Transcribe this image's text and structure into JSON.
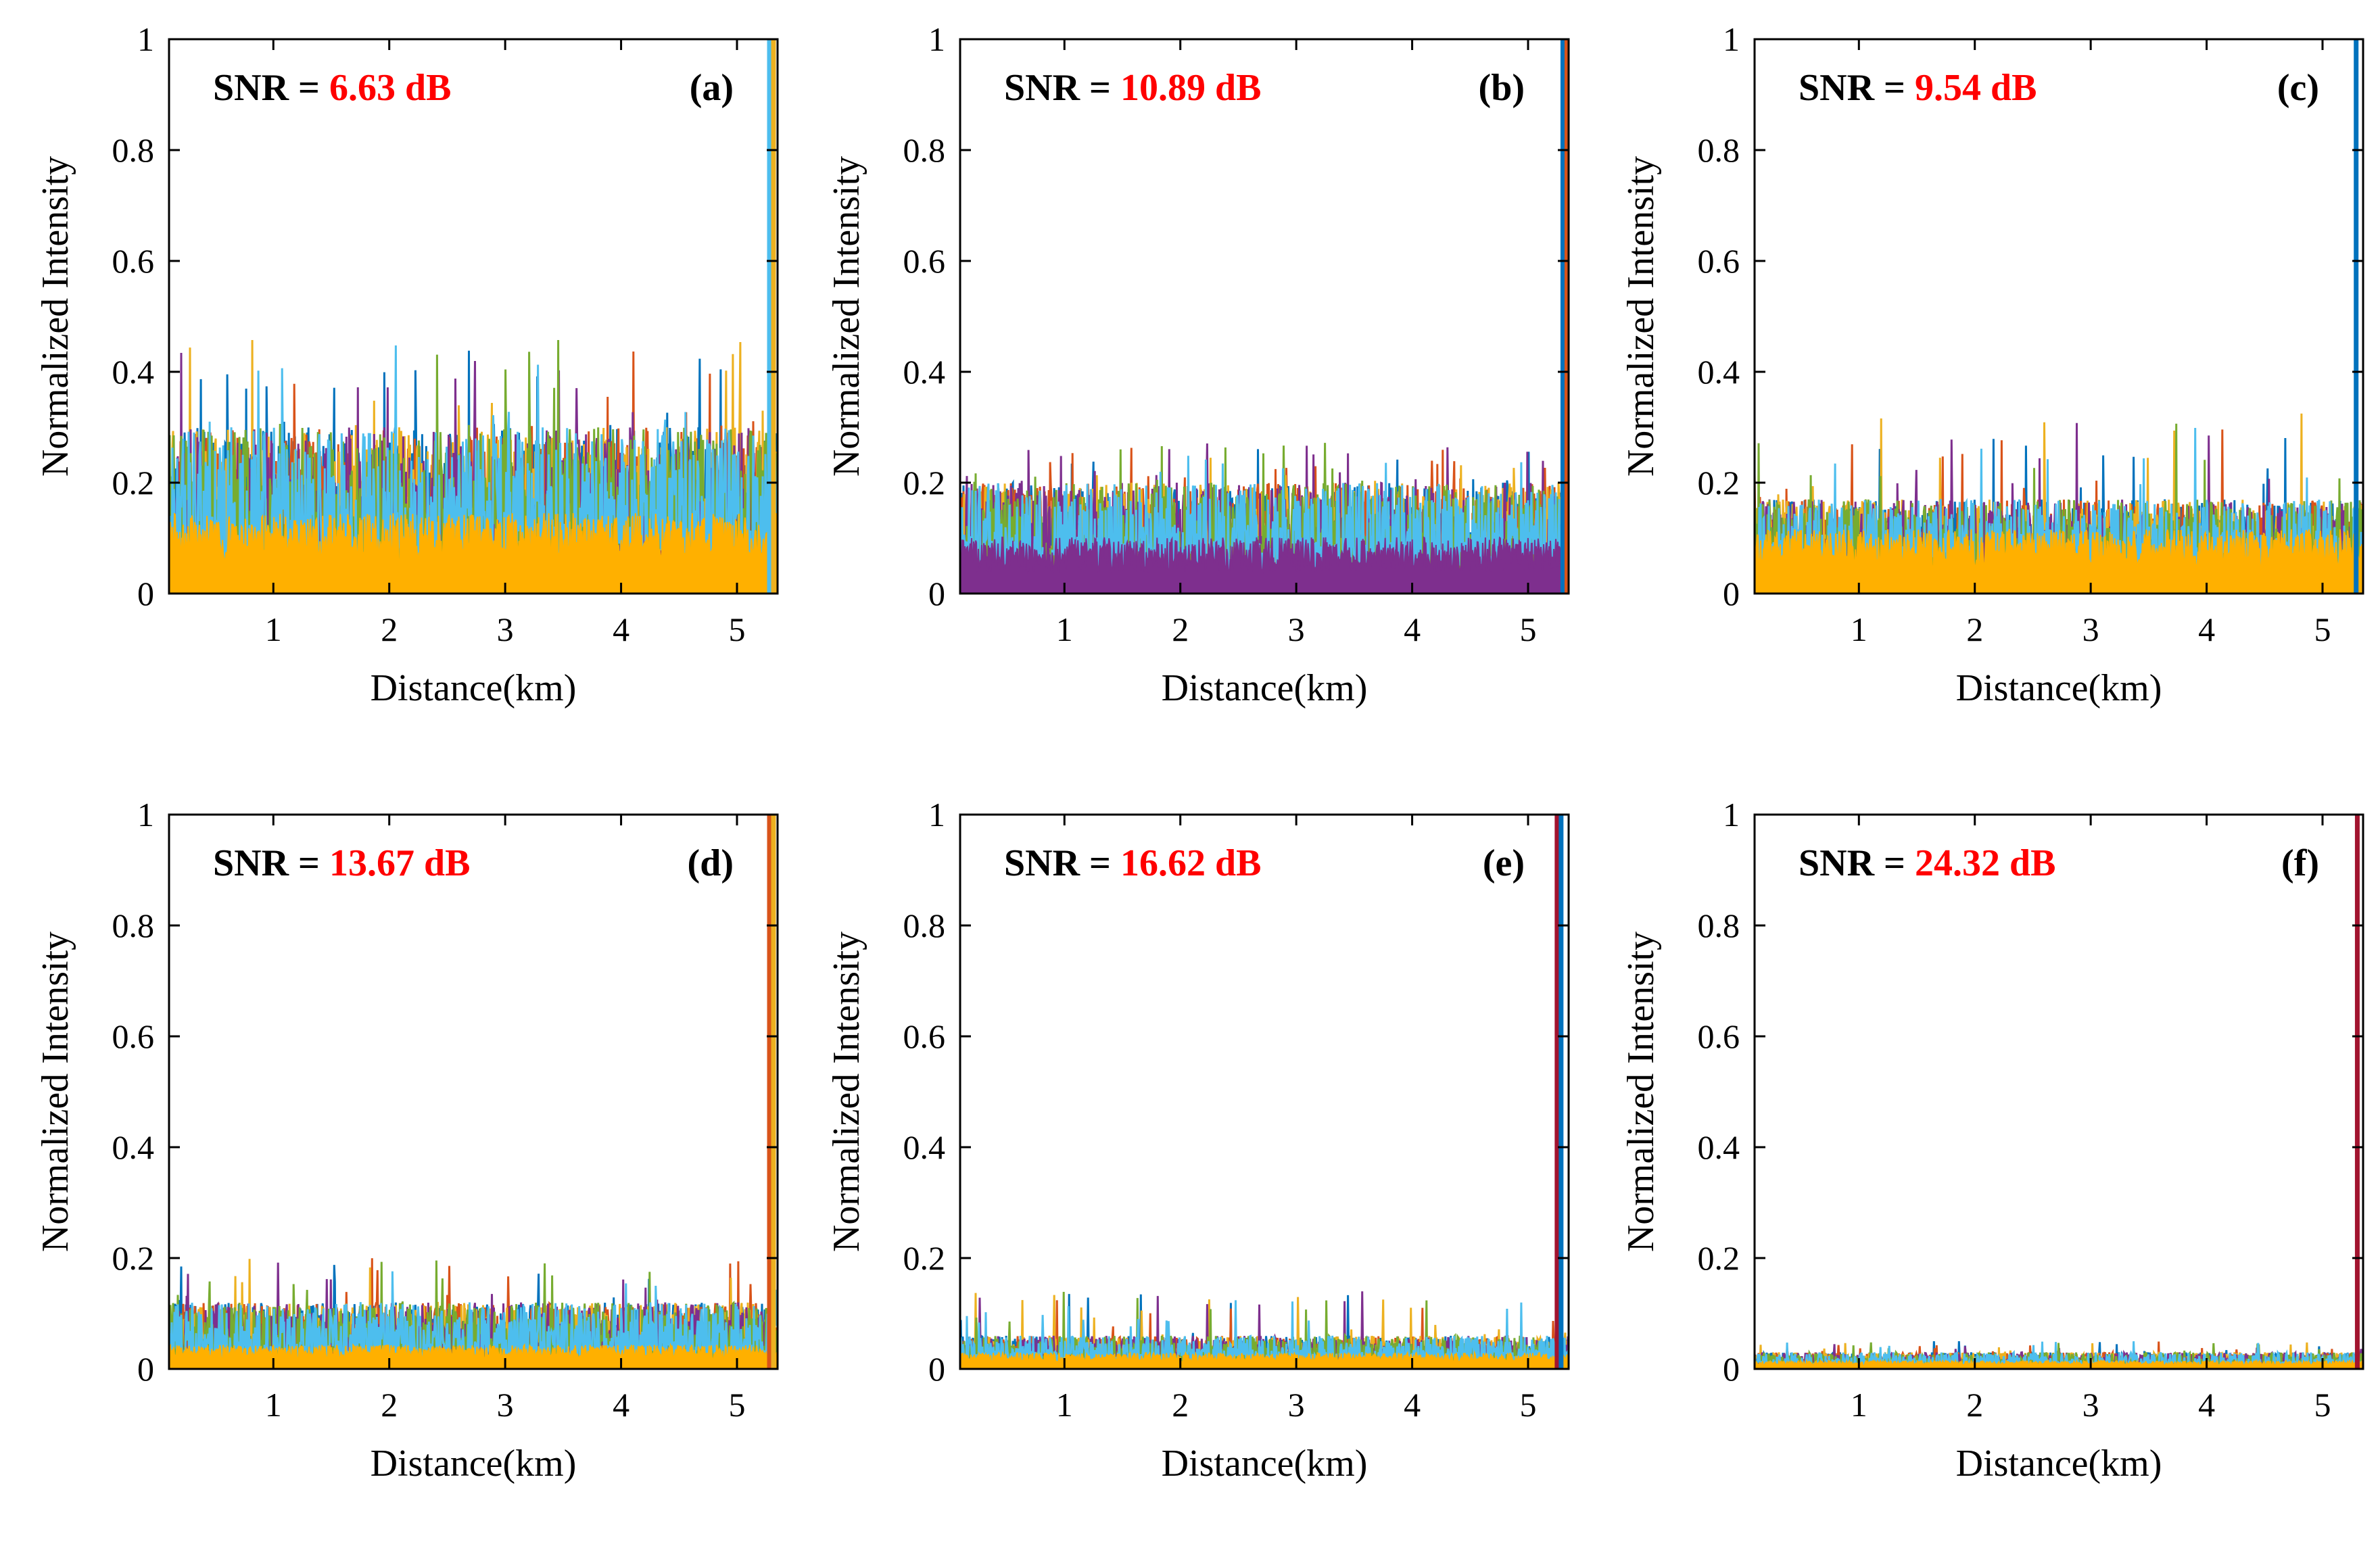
{
  "figure": {
    "colors": [
      "#0072BD",
      "#D95319",
      "#EDB120",
      "#7E2F8E",
      "#77AC30",
      "#4DBEEE",
      "#A2142F",
      "#FFB000"
    ]
  },
  "chart_data": [
    {
      "type": "line",
      "panel_label": "(a)",
      "snr_prefix": "SNR = ",
      "snr_value": "6.63 dB",
      "xlabel": "Distance(km)",
      "ylabel": "Normalized Intensity",
      "xlim": [
        0.1,
        5.35
      ],
      "ylim": [
        0,
        1
      ],
      "xticks": [
        "1",
        "2",
        "3",
        "4",
        "5"
      ],
      "yticks": [
        "0",
        "0.2",
        "0.4",
        "0.6",
        "0.8",
        "1"
      ],
      "noise_floor_fill": 0.1,
      "noise_peak": 0.46,
      "noise_typical_max": 0.3,
      "peak_position_km": 5.28,
      "peak_value": 1.0,
      "fill_color": "#FFB000",
      "peak_colors": [
        "#4DBEEE",
        "#EDB120"
      ]
    },
    {
      "type": "line",
      "panel_label": "(b)",
      "snr_prefix": "SNR = ",
      "snr_value": "10.89 dB",
      "xlabel": "Distance(km)",
      "ylabel": "Normalized Intensity",
      "xlim": [
        0.1,
        5.35
      ],
      "ylim": [
        0,
        1
      ],
      "xticks": [
        "1",
        "2",
        "3",
        "4",
        "5"
      ],
      "yticks": [
        "0",
        "0.2",
        "0.4",
        "0.6",
        "0.8",
        "1"
      ],
      "noise_floor_fill": 0.07,
      "noise_peak": 0.28,
      "noise_typical_max": 0.2,
      "peak_position_km": 5.3,
      "peak_value": 1.0,
      "fill_color": "#7E2F8E",
      "peak_colors": [
        "#0072BD",
        "#D95319"
      ]
    },
    {
      "type": "line",
      "panel_label": "(c)",
      "snr_prefix": "SNR = ",
      "snr_value": "9.54 dB",
      "xlabel": "Distance(km)",
      "ylabel": "Normalized Intensity",
      "xlim": [
        0.1,
        5.35
      ],
      "ylim": [
        0,
        1
      ],
      "xticks": [
        "1",
        "2",
        "3",
        "4",
        "5"
      ],
      "yticks": [
        "0",
        "0.2",
        "0.4",
        "0.6",
        "0.8",
        "1"
      ],
      "noise_floor_fill": 0.08,
      "noise_peak": 0.33,
      "noise_typical_max": 0.17,
      "peak_position_km": 5.29,
      "peak_value": 1.0,
      "fill_color": "#FFB000",
      "peak_colors": [
        "#0072BD"
      ]
    },
    {
      "type": "line",
      "panel_label": "(d)",
      "snr_prefix": "SNR = ",
      "snr_value": "13.67 dB",
      "xlabel": "Distance(km)",
      "ylabel": "Normalized Intensity",
      "xlim": [
        0.1,
        5.35
      ],
      "ylim": [
        0,
        1
      ],
      "xticks": [
        "1",
        "2",
        "3",
        "4",
        "5"
      ],
      "yticks": [
        "0",
        "0.2",
        "0.4",
        "0.6",
        "0.8",
        "1"
      ],
      "noise_floor_fill": 0.03,
      "noise_peak": 0.2,
      "noise_typical_max": 0.12,
      "peak_position_km": 5.28,
      "peak_value": 1.0,
      "fill_color": "#FFB000",
      "peak_colors": [
        "#D95319",
        "#EDB120"
      ]
    },
    {
      "type": "line",
      "panel_label": "(e)",
      "snr_prefix": "SNR = ",
      "snr_value": "16.62 dB",
      "xlabel": "Distance(km)",
      "ylabel": "Normalized Intensity",
      "xlim": [
        0.1,
        5.35
      ],
      "ylim": [
        0,
        1
      ],
      "xticks": [
        "1",
        "2",
        "3",
        "4",
        "5"
      ],
      "yticks": [
        "0",
        "0.2",
        "0.4",
        "0.6",
        "0.8",
        "1"
      ],
      "noise_floor_fill": 0.02,
      "noise_peak": 0.14,
      "noise_typical_max": 0.06,
      "peak_position_km": 5.25,
      "peak_value": 1.0,
      "fill_color": "#FFB000",
      "peak_colors": [
        "#A2142F",
        "#0072BD"
      ]
    },
    {
      "type": "line",
      "panel_label": "(f)",
      "snr_prefix": "SNR = ",
      "snr_value": "24.32 dB",
      "xlabel": "Distance(km)",
      "ylabel": "Normalized Intensity",
      "xlim": [
        0.1,
        5.35
      ],
      "ylim": [
        0,
        1
      ],
      "xticks": [
        "1",
        "2",
        "3",
        "4",
        "5"
      ],
      "yticks": [
        "0",
        "0.2",
        "0.4",
        "0.6",
        "0.8",
        "1"
      ],
      "noise_floor_fill": 0.01,
      "noise_peak": 0.05,
      "noise_typical_max": 0.03,
      "peak_position_km": 5.3,
      "peak_value": 1.0,
      "fill_color": "#FFB000",
      "peak_colors": [
        "#A2142F"
      ]
    }
  ]
}
